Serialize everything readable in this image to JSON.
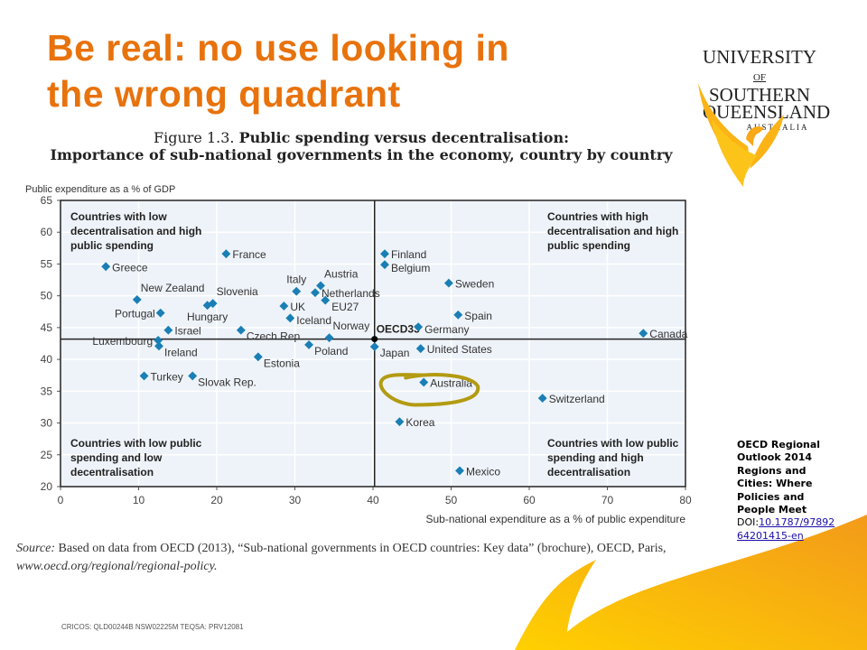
{
  "slide": {
    "title_line1": "Be real: no use looking in",
    "title_line2": "the wrong quadrant",
    "brand_color": "#e8720c"
  },
  "logo": {
    "line1": "UNIVERSITY",
    "of": "OF",
    "line2": "SOUTHERN",
    "line3": "QUEENSLAND",
    "line4": "AUSTRALIA"
  },
  "figure": {
    "title_line1_prefix": "Figure 1.3. ",
    "title_line1_bold": "Public spending versus decentralisation:",
    "title_line2": "Importance of sub-national governments in the economy, country by country",
    "source_label": "Source:",
    "source_text": " Based on data from OECD (2013), “Sub-national governments in OECD countries: Key data” (brochure), OECD, Paris, ",
    "source_url": "www.oecd.org/regional/regional-policy."
  },
  "citation": {
    "line1": "OECD Regional",
    "line2": "Outlook 2014",
    "line3": "Regions and",
    "line4": "Cities: Where",
    "line5": "Policies and",
    "line6": "People Meet",
    "doi_label": "DOI:",
    "doi_link_1": "10.1787/97892",
    "doi_link_2": "64201415-en"
  },
  "footer": {
    "cricos": "CRICOS: QLD00244B  NSW02225M    TEQSA: PRV12081"
  },
  "chart_data": {
    "type": "scatter",
    "xlabel": "Sub-national expenditure as a % of public expenditure",
    "ylabel": "Public expenditure as a % of GDP",
    "xlim": [
      0,
      80
    ],
    "ylim": [
      20,
      65
    ],
    "xticks": [
      "0",
      "10",
      "20",
      "30",
      "40",
      "50",
      "60",
      "70",
      "80"
    ],
    "yticks": [
      "20",
      "25",
      "30",
      "35",
      "40",
      "45",
      "50",
      "55",
      "60",
      "65"
    ],
    "grid": true,
    "point_color": "#1a7fb5",
    "reference": {
      "name": "OECD33",
      "x": 40.2,
      "y": 43.2
    },
    "quadrants": {
      "top_left": [
        "Countries with low",
        "decentralisation and high",
        "public spending"
      ],
      "top_right": [
        "Countries with high",
        "decentralisation and high",
        "public spending"
      ],
      "bottom_left": [
        "Countries with low public",
        "spending and low",
        "decentralisation"
      ],
      "bottom_right": [
        "Countries with low public",
        "spending and high",
        "decentralisation"
      ]
    },
    "annotation": {
      "type": "hand-drawn-circle",
      "target": "Australia",
      "color": "#b39b12"
    },
    "points": [
      {
        "name": "Greece",
        "x": 5.8,
        "y": 54.6,
        "label_pos": "right"
      },
      {
        "name": "France",
        "x": 21.2,
        "y": 56.6,
        "label_pos": "right"
      },
      {
        "name": "New Zealand",
        "x": 9.8,
        "y": 49.4,
        "label_pos": "above-right"
      },
      {
        "name": "Portugal",
        "x": 12.8,
        "y": 47.3,
        "label_pos": "left"
      },
      {
        "name": "Hungary",
        "x": 18.8,
        "y": 48.5,
        "label_pos": "below"
      },
      {
        "name": "Slovenia",
        "x": 19.5,
        "y": 48.8,
        "label_pos": "above-right"
      },
      {
        "name": "Italy",
        "x": 30.2,
        "y": 50.7,
        "label_pos": "above"
      },
      {
        "name": "Austria",
        "x": 33.3,
        "y": 51.6,
        "label_pos": "above-right"
      },
      {
        "name": "Netherlands",
        "x": 32.6,
        "y": 50.5,
        "label_pos": "right"
      },
      {
        "name": "EU27",
        "x": 33.9,
        "y": 49.3,
        "label_pos": "right"
      },
      {
        "name": "UK",
        "x": 28.6,
        "y": 48.4,
        "label_pos": "right"
      },
      {
        "name": "Iceland",
        "x": 29.4,
        "y": 46.5,
        "label_pos": "right"
      },
      {
        "name": "Israel",
        "x": 13.8,
        "y": 44.6,
        "label_pos": "right"
      },
      {
        "name": "Czech Rep.",
        "x": 23.1,
        "y": 44.6,
        "label_pos": "below-right"
      },
      {
        "name": "Norway",
        "x": 34.4,
        "y": 43.4,
        "label_pos": "above-right"
      },
      {
        "name": "Luxembourg",
        "x": 12.5,
        "y": 43.0,
        "label_pos": "left"
      },
      {
        "name": "Ireland",
        "x": 12.6,
        "y": 42.1,
        "label_pos": "below-right"
      },
      {
        "name": "Poland",
        "x": 31.8,
        "y": 42.3,
        "label_pos": "below-right"
      },
      {
        "name": "Estonia",
        "x": 25.3,
        "y": 40.4,
        "label_pos": "below-right"
      },
      {
        "name": "Turkey",
        "x": 10.7,
        "y": 37.4,
        "label_pos": "right"
      },
      {
        "name": "Slovak Rep.",
        "x": 16.9,
        "y": 37.4,
        "label_pos": "below-right"
      },
      {
        "name": "Japan",
        "x": 40.2,
        "y": 42.0,
        "label_pos": "below-right"
      },
      {
        "name": "Finland",
        "x": 41.5,
        "y": 56.6,
        "label_pos": "right"
      },
      {
        "name": "Belgium",
        "x": 41.5,
        "y": 54.9,
        "label_pos": "right"
      },
      {
        "name": "Sweden",
        "x": 49.7,
        "y": 52.0,
        "label_pos": "right"
      },
      {
        "name": "Spain",
        "x": 50.9,
        "y": 47.0,
        "label_pos": "right"
      },
      {
        "name": "Germany",
        "x": 45.8,
        "y": 45.1,
        "label_pos": "right"
      },
      {
        "name": "United States",
        "x": 46.1,
        "y": 41.7,
        "label_pos": "right"
      },
      {
        "name": "Canada",
        "x": 74.6,
        "y": 44.1,
        "label_pos": "right"
      },
      {
        "name": "Australia",
        "x": 46.5,
        "y": 36.4,
        "label_pos": "right"
      },
      {
        "name": "Switzerland",
        "x": 61.7,
        "y": 33.9,
        "label_pos": "right"
      },
      {
        "name": "Korea",
        "x": 43.4,
        "y": 30.2,
        "label_pos": "right"
      },
      {
        "name": "Mexico",
        "x": 51.1,
        "y": 22.5,
        "label_pos": "right"
      }
    ]
  }
}
